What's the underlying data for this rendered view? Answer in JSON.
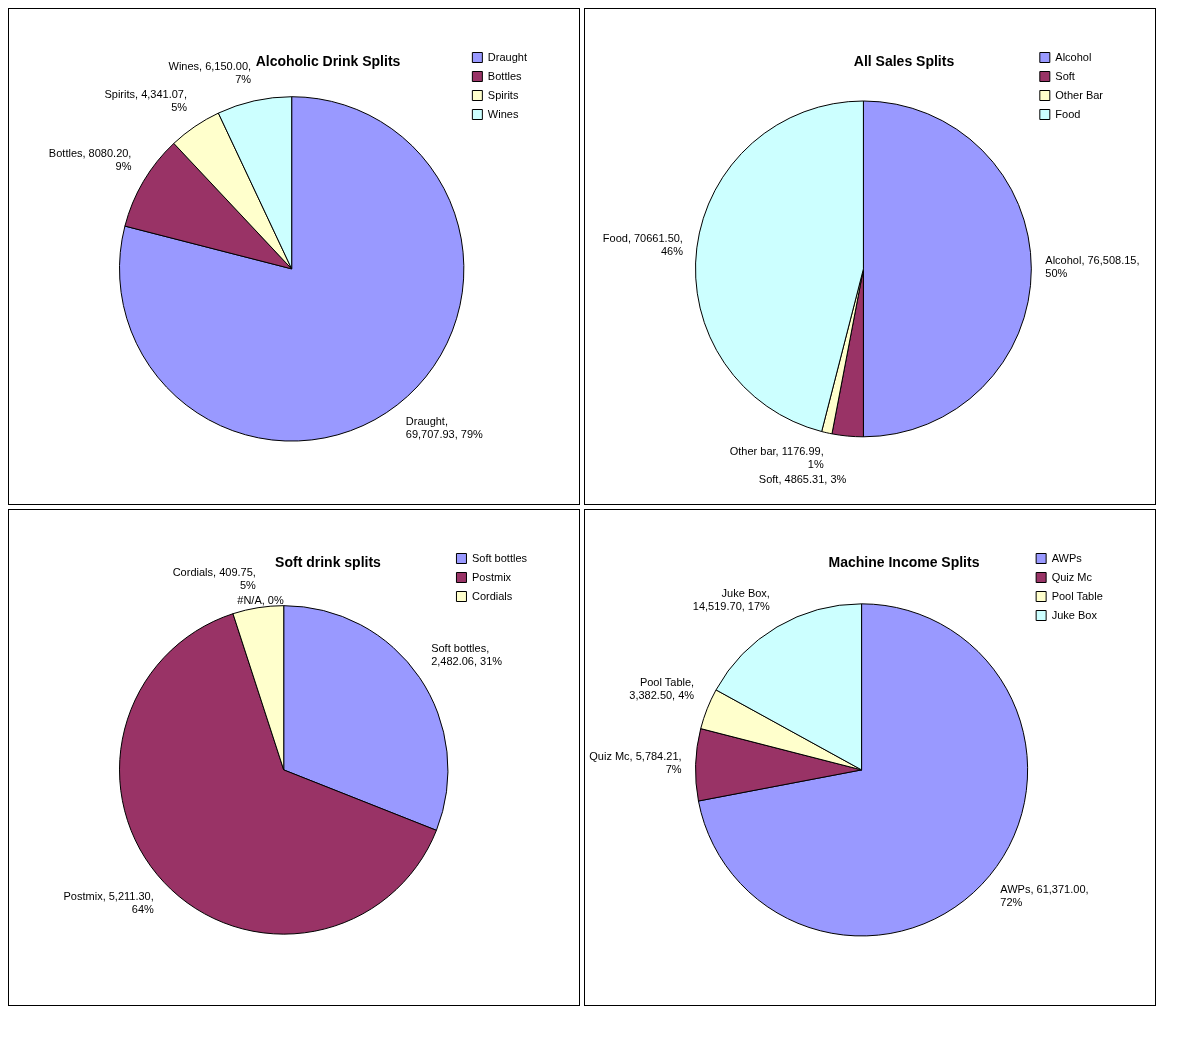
{
  "chart_data": [
    {
      "type": "pie",
      "title": "Alcoholic Drink Splits",
      "categories": [
        "Draught",
        "Bottles",
        "Spirits",
        "Wines"
      ],
      "values": [
        79,
        9,
        5,
        7
      ],
      "colors": [
        "#9999ff",
        "#993366",
        "#ffffcc",
        "#ccffff"
      ],
      "value_labels": [
        "Draught, 69,707.93, 79%",
        "Bottles, 8080.20, 9%",
        "Spirits, 4,341.07, 5%",
        "Wines, 6,150.00, 7%"
      ],
      "legend": "top right"
    },
    {
      "type": "pie",
      "title": "All Sales Splits",
      "categories": [
        "Alcohol",
        "Soft",
        "Other Bar",
        "Food"
      ],
      "values": [
        50,
        3,
        1,
        46
      ],
      "colors": [
        "#9999ff",
        "#993366",
        "#ffffcc",
        "#ccffff"
      ],
      "value_labels": [
        "Alcohol, 76,508.15, 50%",
        "Soft, 4865.31, 3%",
        "Other bar, 1176.99, 1%",
        "Food, 70661.50, 46%"
      ],
      "legend": "top right"
    },
    {
      "type": "pie",
      "title": "Soft drink splits",
      "categories": [
        "Soft bottles",
        "Postmix",
        "Cordials",
        null
      ],
      "values": [
        31,
        64,
        5,
        0
      ],
      "colors": [
        "#9999ff",
        "#993366",
        "#ffffcc",
        "#ccffff"
      ],
      "value_labels": [
        "Soft bottles, 2,482.06, 31%",
        "Postmix, 5,211.30, 64%",
        "Cordials, 409.75, 5%",
        "#N/A, 0%"
      ],
      "legend": "top right"
    },
    {
      "type": "pie",
      "title": "Machine Income Splits",
      "categories": [
        "AWPs",
        "Quiz Mc",
        "Pool Table",
        "Juke Box"
      ],
      "values": [
        72,
        7,
        4,
        17
      ],
      "colors": [
        "#9999ff",
        "#993366",
        "#ffffcc",
        "#ccffff"
      ],
      "value_labels": [
        "AWPs, 61,371.00, 72%",
        "Quiz Mc, 5,784.21, 7%",
        "Pool Table, 3,382.50, 4%",
        "Juke Box, 14,519.70, 17%"
      ],
      "legend": "top right"
    }
  ]
}
